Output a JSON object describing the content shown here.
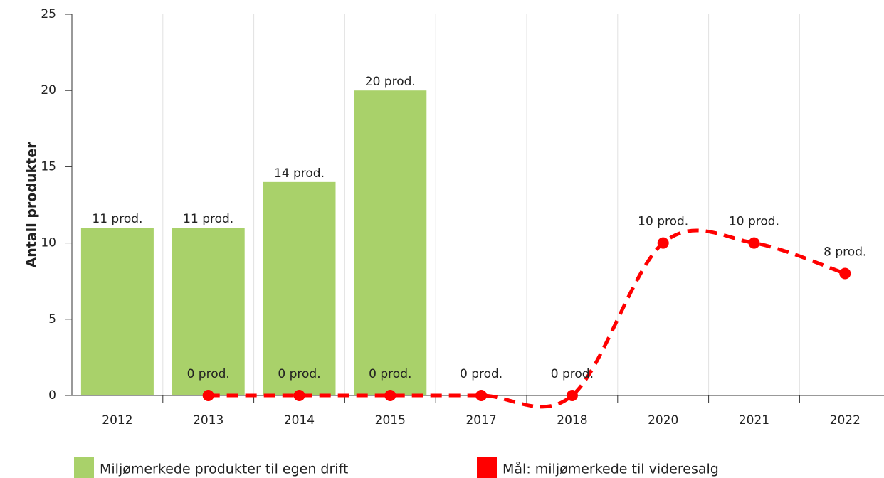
{
  "chart_data": {
    "type": "bar",
    "y_label": "Antall produkter",
    "categories": [
      "2012",
      "2013",
      "2014",
      "2015",
      "2017",
      "2018",
      "2020",
      "2021",
      "2022"
    ],
    "series": [
      {
        "name": "Miljømerkede produkter til egen drift",
        "type": "bar",
        "color": "#a9d16a",
        "values": [
          11,
          11,
          14,
          20,
          null,
          null,
          null,
          null,
          null
        ],
        "value_labels": [
          "11 prod.",
          "11 prod.",
          "14 prod.",
          "20 prod.",
          null,
          null,
          null,
          null,
          null
        ]
      },
      {
        "name": "Mål: miljømerkede til videresalg",
        "type": "line",
        "color": "#ff0000",
        "values": [
          null,
          0,
          0,
          0,
          0,
          0,
          10,
          10,
          8
        ],
        "value_labels": [
          null,
          "0 prod.",
          "0 prod.",
          "0 prod.",
          "0 prod.",
          "0 prod.",
          "10 prod.",
          "10 prod.",
          "8 prod."
        ]
      }
    ],
    "ylim": [
      0,
      25
    ],
    "yticks": [
      0,
      5,
      10,
      15,
      20,
      25
    ],
    "grid": true,
    "legend": "bottom"
  }
}
